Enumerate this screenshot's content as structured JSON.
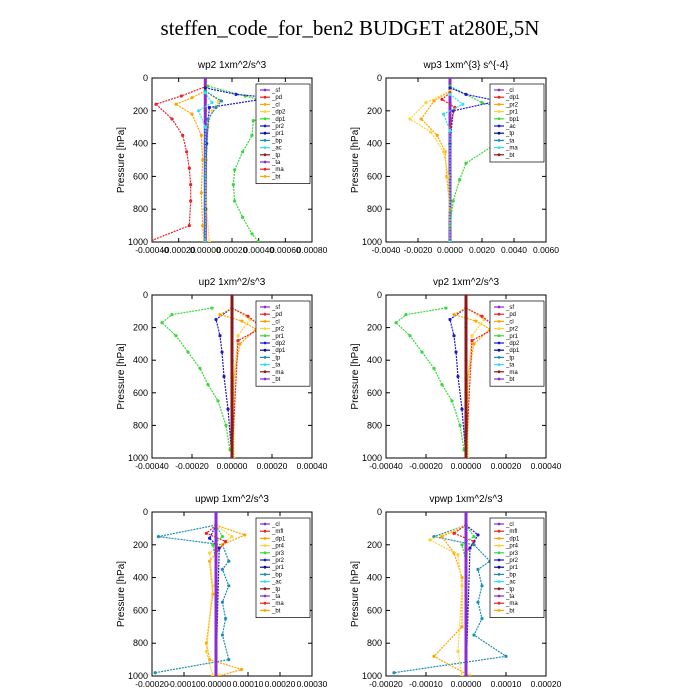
{
  "page": {
    "title": "steffen_code_for_ben2  BUDGET at280E,5N"
  },
  "colors": {
    "red": "#e8242a",
    "purple": "#8b2bd0",
    "orange": "#ffa500",
    "gold": "#ffd23a",
    "green": "#3ad83a",
    "blue": "#1a1acd",
    "teal": "#1e8fb4",
    "cyan": "#33e0f0",
    "navy": "#0a0a90",
    "maroon": "#8a1a1a"
  },
  "chart_data": [
    {
      "type": "line",
      "title": "wp2   1xm^2/s^3",
      "ylabel": "Pressure [hPa]",
      "xlim": [
        -0.0004,
        0.0008
      ],
      "ylim": [
        1000,
        0
      ],
      "xticks": [
        "-0.00040",
        "-0.00020",
        "0.00000",
        "0.00020",
        "0.00040",
        "0.00060",
        "0.00080"
      ],
      "yticks": [
        "0",
        "200",
        "400",
        "600",
        "800",
        "1000"
      ],
      "legend": [
        "_sf",
        "_pd",
        "_cl",
        "_dp2",
        "_dp1",
        "_pr2",
        "_pr1",
        "_bp",
        "_ac",
        "_tp",
        "_ta",
        "_ma",
        "_bt"
      ],
      "series": [
        {
          "color": "#8b2bd0",
          "x": [
            0,
            0,
            0,
            0,
            0,
            0,
            0,
            0,
            0,
            0,
            0
          ],
          "y": [
            0,
            100,
            200,
            300,
            400,
            500,
            600,
            700,
            800,
            900,
            1000
          ]
        },
        {
          "color": "#e8242a",
          "x": [
            1e-05,
            -0.00018,
            -0.00037,
            -0.00025,
            -0.00017,
            -0.00014,
            -0.00012,
            -0.00011,
            -0.00011,
            -0.00012,
            -0.0004
          ],
          "y": [
            50,
            110,
            160,
            250,
            350,
            450,
            550,
            650,
            750,
            900,
            990
          ]
        },
        {
          "color": "#3ad83a",
          "x": [
            2e-05,
            0.0003,
            0.0007,
            0.00036,
            0.00035,
            0.00028,
            0.00022,
            0.00021,
            0.00022,
            0.00028,
            0.00035,
            0.0004
          ],
          "y": [
            50,
            110,
            200,
            260,
            350,
            450,
            560,
            650,
            750,
            850,
            950,
            1000
          ]
        },
        {
          "color": "#ffa500",
          "x": [
            0,
            -0.0001,
            -0.00022,
            -0.0001,
            -3e-05,
            -2e-05,
            -3e-05,
            -2e-05,
            -1e-05
          ],
          "y": [
            80,
            120,
            160,
            220,
            350,
            500,
            700,
            900,
            1000
          ]
        },
        {
          "color": "#ffd23a",
          "x": [
            0,
            0.0001,
            5e-05,
            2e-05,
            1e-05,
            1e-05,
            3e-05
          ],
          "y": [
            80,
            140,
            200,
            300,
            500,
            800,
            1000
          ]
        },
        {
          "color": "#1a1acd",
          "x": [
            0,
            0.00023,
            0.0005,
            3e-05,
            1e-05,
            0,
            0
          ],
          "y": [
            60,
            100,
            120,
            180,
            400,
            800,
            1000
          ]
        },
        {
          "color": "#1e8fb4",
          "x": [
            0,
            0.00012,
            8e-05,
            2e-05,
            0,
            0
          ],
          "y": [
            80,
            140,
            180,
            250,
            600,
            1000
          ]
        },
        {
          "color": "#33e0f0",
          "x": [
            0,
            5e-05,
            -5e-05,
            0,
            0
          ],
          "y": [
            90,
            150,
            200,
            300,
            1000
          ]
        }
      ]
    },
    {
      "type": "line",
      "title": "wp3   1xm^{3} s^{-4}",
      "ylabel": "Pressure [hPa]",
      "xlim": [
        -0.004,
        0.006
      ],
      "ylim": [
        1000,
        0
      ],
      "xticks": [
        "-0.0040",
        "-0.0020",
        "0.0000",
        "0.0020",
        "0.0040",
        "0.0060"
      ],
      "yticks": [
        "0",
        "200",
        "400",
        "600",
        "800",
        "1000"
      ],
      "legend": [
        "_cl",
        "_dp1",
        "_pr2",
        "_pr1",
        "_bp1",
        "_ac",
        "_tp",
        "_ta",
        "_ma",
        "_bt"
      ],
      "series": [
        {
          "color": "#8b2bd0",
          "x": [
            0,
            0,
            0,
            0,
            0,
            0,
            0,
            0
          ],
          "y": [
            0,
            150,
            300,
            450,
            600,
            750,
            900,
            1000
          ]
        },
        {
          "color": "#3ad83a",
          "x": [
            0,
            0.002,
            0.0055,
            0.004,
            0.001,
            0.0006,
            0.0002,
            0,
            0
          ],
          "y": [
            50,
            150,
            240,
            330,
            520,
            620,
            750,
            900,
            1000
          ]
        },
        {
          "color": "#ffa500",
          "x": [
            0,
            -0.001,
            -0.0018,
            -0.0008,
            -0.0003,
            -0.0002,
            0,
            0
          ],
          "y": [
            80,
            140,
            250,
            350,
            450,
            600,
            800,
            1000
          ]
        },
        {
          "color": "#ffd23a",
          "x": [
            0,
            -0.0015,
            -0.0025,
            -0.0012,
            -0.0004,
            -0.0001,
            0
          ],
          "y": [
            80,
            150,
            250,
            330,
            450,
            600,
            1000
          ]
        },
        {
          "color": "#1a1acd",
          "x": [
            0,
            0.001,
            0.003,
            0.0002,
            0,
            0
          ],
          "y": [
            60,
            100,
            140,
            200,
            400,
            1000
          ]
        },
        {
          "color": "#e8242a",
          "x": [
            0,
            -0.0005,
            0.0003,
            0,
            0
          ],
          "y": [
            90,
            130,
            180,
            300,
            1000
          ]
        },
        {
          "color": "#33e0f0",
          "x": [
            0,
            0.0008,
            -0.0004,
            0,
            0
          ],
          "y": [
            100,
            160,
            220,
            320,
            1000
          ]
        }
      ]
    },
    {
      "type": "line",
      "title": "up2   1xm^2/s^3",
      "ylabel": "Pressure [hPa]",
      "xlim": [
        -0.0004,
        0.0004
      ],
      "ylim": [
        1000,
        0
      ],
      "xticks": [
        "-0.00040",
        "-0.00020",
        "0.00000",
        "0.00020",
        "0.00040"
      ],
      "yticks": [
        "0",
        "200",
        "400",
        "600",
        "800",
        "1000"
      ],
      "legend": [
        "_sf",
        "_pd",
        "_cl",
        "_pr2",
        "_pr1",
        "_dp2",
        "_dp1",
        "_tp",
        "_ta",
        "_ma",
        "_bt"
      ],
      "series": [
        {
          "color": "#3ad83a",
          "x": [
            -0.0001,
            -0.0003,
            -0.00035,
            -0.00028,
            -0.00022,
            -0.00016,
            -0.00012,
            -7e-05,
            -3e-05,
            -1e-05
          ],
          "y": [
            80,
            120,
            170,
            250,
            350,
            450,
            550,
            650,
            800,
            950
          ]
        },
        {
          "color": "#1a1acd",
          "x": [
            0,
            -8e-05,
            -6e-05,
            -5e-05,
            -4e-05,
            -2e-05,
            0
          ],
          "y": [
            80,
            150,
            250,
            350,
            500,
            700,
            1000
          ]
        },
        {
          "color": "#ffa500",
          "x": [
            0,
            -6e-05,
            5e-05,
            0.00012,
            4e-05,
            1e-05,
            0
          ],
          "y": [
            80,
            120,
            160,
            210,
            300,
            500,
            1000
          ]
        },
        {
          "color": "#ffd23a",
          "x": [
            0,
            9e-05,
            3e-05,
            1e-05,
            1e-05
          ],
          "y": [
            80,
            150,
            250,
            500,
            1000
          ]
        },
        {
          "color": "#e8242a",
          "x": [
            0,
            8e-05,
            0.00015,
            3e-05,
            0
          ],
          "y": [
            80,
            130,
            200,
            280,
            1000
          ]
        },
        {
          "color": "#8b2bd0",
          "x": [
            0,
            0,
            0,
            0,
            0,
            0,
            0
          ],
          "y": [
            0,
            170,
            340,
            510,
            680,
            850,
            1000
          ]
        },
        {
          "color": "#8a1a1a",
          "x": [
            0,
            0,
            0,
            0,
            0,
            0
          ],
          "y": [
            0,
            200,
            400,
            600,
            800,
            1000
          ]
        }
      ]
    },
    {
      "type": "line",
      "title": "vp2   1xm^2/s^3",
      "ylabel": "Pressure [hPa]",
      "xlim": [
        -0.0004,
        0.0004
      ],
      "ylim": [
        1000,
        0
      ],
      "xticks": [
        "-0.00040",
        "-0.00020",
        "0.00000",
        "0.00020",
        "0.00040"
      ],
      "yticks": [
        "0",
        "200",
        "400",
        "600",
        "800",
        "1000"
      ],
      "legend": [
        "_sf",
        "_pd",
        "_cl",
        "_pr2",
        "_pr1",
        "_dp2",
        "_dp1",
        "_tp",
        "_ta",
        "_ma",
        "_bt"
      ],
      "series": [
        {
          "color": "#3ad83a",
          "x": [
            -0.0001,
            -0.0003,
            -0.00035,
            -0.00028,
            -0.00022,
            -0.00016,
            -0.00012,
            -7e-05,
            -3e-05,
            -1e-05
          ],
          "y": [
            80,
            120,
            170,
            250,
            350,
            450,
            550,
            650,
            800,
            950
          ]
        },
        {
          "color": "#1a1acd",
          "x": [
            0,
            -8e-05,
            -6e-05,
            -5e-05,
            -4e-05,
            -2e-05,
            0
          ],
          "y": [
            80,
            150,
            250,
            350,
            500,
            700,
            1000
          ]
        },
        {
          "color": "#ffa500",
          "x": [
            0,
            -6e-05,
            5e-05,
            0.00012,
            4e-05,
            1e-05,
            0
          ],
          "y": [
            80,
            120,
            160,
            210,
            300,
            500,
            1000
          ]
        },
        {
          "color": "#ffd23a",
          "x": [
            0,
            9e-05,
            3e-05,
            1e-05,
            1e-05
          ],
          "y": [
            80,
            150,
            250,
            500,
            1000
          ]
        },
        {
          "color": "#e8242a",
          "x": [
            0,
            8e-05,
            0.00015,
            3e-05,
            0
          ],
          "y": [
            80,
            130,
            200,
            280,
            1000
          ]
        },
        {
          "color": "#8b2bd0",
          "x": [
            0,
            0,
            0,
            0,
            0,
            0,
            0
          ],
          "y": [
            0,
            170,
            340,
            510,
            680,
            850,
            1000
          ]
        },
        {
          "color": "#8a1a1a",
          "x": [
            0,
            0,
            0,
            0,
            0,
            0
          ],
          "y": [
            0,
            200,
            400,
            600,
            800,
            1000
          ]
        }
      ]
    },
    {
      "type": "line",
      "title": "upwp   1xm^2/s^3",
      "ylabel": "Pressure [hPa]",
      "xlim": [
        -0.0002,
        0.0003
      ],
      "ylim": [
        1000,
        0
      ],
      "xticks": [
        "-0.00020",
        "-0.00010",
        "0.00000",
        "0.00010",
        "0.00020",
        "0.00030"
      ],
      "yticks": [
        "0",
        "200",
        "400",
        "600",
        "800",
        "1000"
      ],
      "legend": [
        "_cl",
        "_mfl",
        "_dp1",
        "_pr4",
        "_pr3",
        "_pr2",
        "_pr1",
        "_bp",
        "_ac",
        "_tp",
        "_ta",
        "_ma",
        "_bt"
      ],
      "series": [
        {
          "color": "#1e8fb4",
          "x": [
            0,
            -0.00018,
            2e-05,
            4e-05,
            2e-05,
            4e-05,
            2e-05,
            3e-05,
            2e-05,
            4e-05,
            -0.00019
          ],
          "y": [
            80,
            150,
            200,
            300,
            350,
            450,
            550,
            650,
            750,
            900,
            980
          ]
        },
        {
          "color": "#ffa500",
          "x": [
            0,
            9e-05,
            2e-05,
            -2e-05,
            -1e-05,
            -3e-05,
            -2e-05,
            8e-05,
            1e-05
          ],
          "y": [
            80,
            140,
            200,
            300,
            500,
            800,
            900,
            960,
            1000
          ]
        },
        {
          "color": "#ffd23a",
          "x": [
            0,
            5e-05,
            -2e-05,
            -1e-05,
            -3e-05,
            -1e-05
          ],
          "y": [
            80,
            150,
            250,
            450,
            850,
            1000
          ]
        },
        {
          "color": "#e8242a",
          "x": [
            0,
            -3e-05,
            3e-05,
            0,
            0
          ],
          "y": [
            80,
            130,
            180,
            250,
            1000
          ]
        },
        {
          "color": "#3ad83a",
          "x": [
            0,
            2e-05,
            -1e-05,
            0,
            0
          ],
          "y": [
            80,
            150,
            200,
            300,
            1000
          ]
        },
        {
          "color": "#1a1acd",
          "x": [
            0,
            -2e-05,
            1e-05,
            0
          ],
          "y": [
            80,
            160,
            220,
            1000
          ]
        },
        {
          "color": "#8b2bd0",
          "x": [
            0,
            0,
            0,
            0,
            0,
            0,
            0
          ],
          "y": [
            0,
            170,
            340,
            510,
            680,
            850,
            1000
          ]
        }
      ]
    },
    {
      "type": "line",
      "title": "vpwp   1xm^2/s^3",
      "ylabel": "Pressure [hPa]",
      "xlim": [
        -0.0002,
        0.0002
      ],
      "ylim": [
        1000,
        0
      ],
      "xticks": [
        "-0.00020",
        "-0.00010",
        "0.00000",
        "0.00010",
        "0.00020"
      ],
      "yticks": [
        "0",
        "200",
        "400",
        "600",
        "800",
        "1000"
      ],
      "legend": [
        "_cl",
        "_mfl",
        "_dp1",
        "_pr4",
        "_pr3",
        "_pr2",
        "_pr1",
        "_bp",
        "_ac",
        "_tp",
        "_ta",
        "_ma",
        "_bt"
      ],
      "series": [
        {
          "color": "#1e8fb4",
          "x": [
            0,
            -8e-05,
            2e-05,
            6e-05,
            3e-05,
            4e-05,
            3e-05,
            4e-05,
            2e-05,
            0.0001,
            -0.00018
          ],
          "y": [
            80,
            150,
            200,
            300,
            350,
            450,
            550,
            650,
            750,
            880,
            980
          ]
        },
        {
          "color": "#ffa500",
          "x": [
            0,
            -6e-05,
            -3e-05,
            -1e-05,
            -1e-05,
            -8e-05,
            1e-05
          ],
          "y": [
            80,
            150,
            250,
            400,
            700,
            880,
            1000
          ]
        },
        {
          "color": "#ffd23a",
          "x": [
            0,
            -9e-05,
            -2e-05,
            -1e-05,
            -2e-05,
            -1e-05
          ],
          "y": [
            80,
            170,
            260,
            450,
            850,
            1000
          ]
        },
        {
          "color": "#e8242a",
          "x": [
            0,
            -3e-05,
            2e-05,
            0,
            0
          ],
          "y": [
            80,
            130,
            180,
            250,
            1000
          ]
        },
        {
          "color": "#3ad83a",
          "x": [
            0,
            2e-05,
            -1e-05,
            0,
            0
          ],
          "y": [
            80,
            150,
            200,
            300,
            1000
          ]
        },
        {
          "color": "#1a1acd",
          "x": [
            0,
            3e-05,
            1e-05,
            0
          ],
          "y": [
            80,
            140,
            220,
            1000
          ]
        },
        {
          "color": "#8b2bd0",
          "x": [
            0,
            0,
            0,
            0,
            0,
            0,
            0
          ],
          "y": [
            0,
            170,
            340,
            510,
            680,
            850,
            1000
          ]
        }
      ]
    }
  ]
}
